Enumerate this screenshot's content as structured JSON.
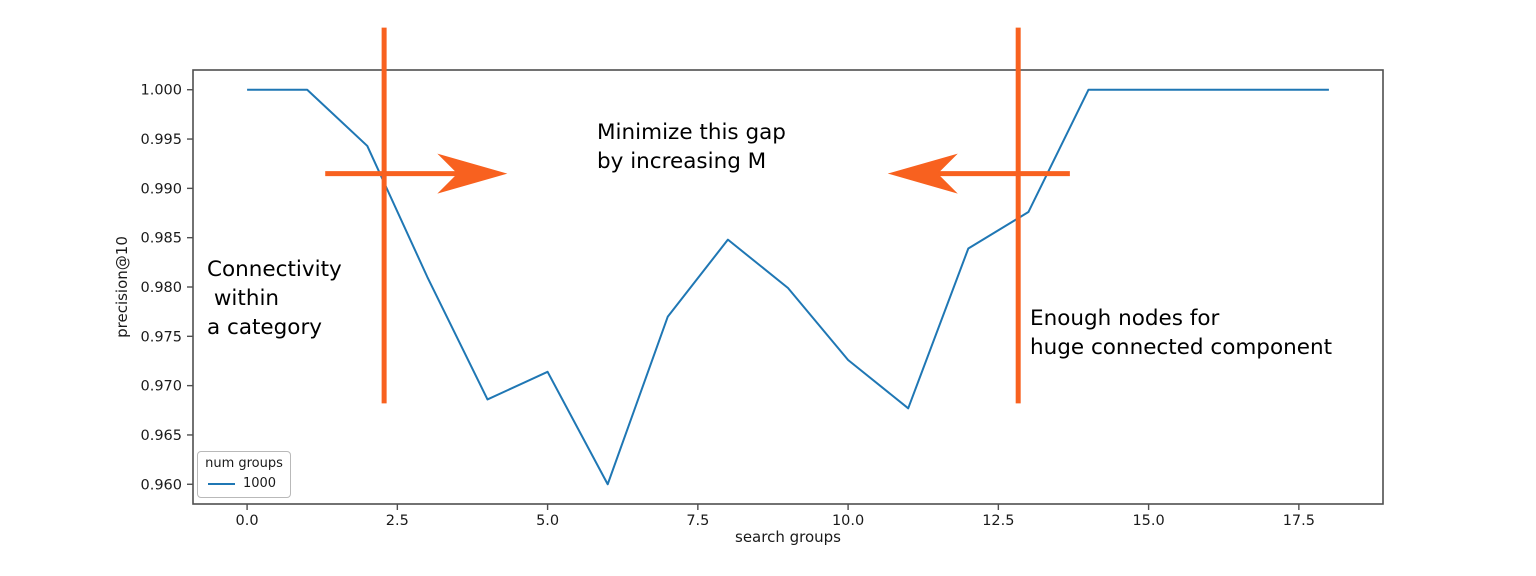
{
  "chart_data": {
    "type": "line",
    "title": "",
    "xlabel": "search groups",
    "ylabel": "precision@10",
    "xlim": [
      -0.9,
      18.9
    ],
    "ylim": [
      0.958,
      1.002
    ],
    "grid": false,
    "x_ticks": {
      "values": [
        0,
        2.5,
        5,
        7.5,
        10,
        12.5,
        15,
        17.5
      ],
      "labels": [
        "0.0",
        "2.5",
        "5.0",
        "7.5",
        "10.0",
        "12.5",
        "15.0",
        "17.5"
      ]
    },
    "y_ticks": {
      "values": [
        0.96,
        0.965,
        0.97,
        0.975,
        0.98,
        0.985,
        0.99,
        0.995,
        1.0
      ],
      "labels": [
        "0.960",
        "0.965",
        "0.970",
        "0.975",
        "0.980",
        "0.985",
        "0.990",
        "0.995",
        "1.000"
      ]
    },
    "series": [
      {
        "name": "1000",
        "color": "#1f77b4",
        "x": [
          0,
          1,
          2,
          3,
          4,
          5,
          6,
          7,
          8,
          9,
          10,
          11,
          12,
          13,
          14,
          15,
          16,
          17,
          18
        ],
        "y": [
          1.0,
          1.0,
          0.9943,
          0.981,
          0.9686,
          0.9714,
          0.96,
          0.977,
          0.9848,
          0.9799,
          0.9726,
          0.9677,
          0.9839,
          0.9876,
          1.0,
          1.0,
          1.0,
          1.0,
          1.0
        ]
      }
    ],
    "legend": {
      "title": "num groups",
      "position": "lower left",
      "entries": [
        {
          "label": "1000",
          "color": "#1f77b4"
        }
      ]
    }
  },
  "annotations": {
    "color": "#f8611f",
    "minimize_gap": {
      "text": "Minimize this gap\nby increasing M"
    },
    "connectivity": {
      "text": "Connectivity\n within\na category"
    },
    "enough_nodes": {
      "text": "Enough nodes for\nhuge connected component"
    },
    "vlines": [
      {
        "x": 2.28,
        "y_from": 0.9682,
        "y_to": 1.0063
      },
      {
        "x": 12.83,
        "y_from": 0.9682,
        "y_to": 1.0063
      }
    ],
    "arrows": [
      {
        "dir": "right",
        "y": 0.9915,
        "x_start": 1.3,
        "x_tip": 4.33
      },
      {
        "dir": "left",
        "y": 0.9915,
        "x_start": 13.69,
        "x_tip": 10.66
      }
    ]
  }
}
